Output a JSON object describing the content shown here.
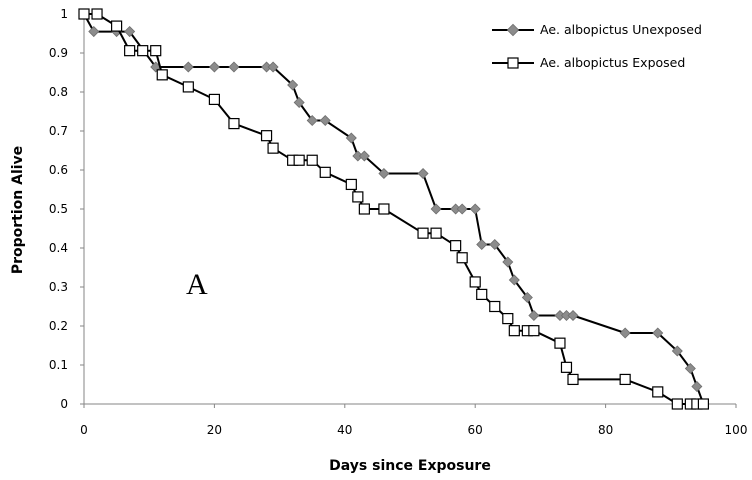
{
  "chart_data": {
    "type": "line",
    "xlabel": "Days since Exposure",
    "ylabel": "Proportion Alive",
    "xlim": [
      0,
      100
    ],
    "ylim": [
      0,
      1
    ],
    "x_ticks": [
      "0",
      "20",
      "40",
      "60",
      "80",
      "100"
    ],
    "y_ticks": [
      "0",
      "0.1",
      "0.2",
      "0.3",
      "0.4",
      "0.5",
      "0.6",
      "0.7",
      "0.8",
      "0.9",
      "1"
    ],
    "annotation": "A",
    "legend_position": "top-right",
    "series": [
      {
        "name": "Ae. albopictus Unexposed",
        "color": "#000000",
        "marker": "diamond",
        "marker_color": "#8c8c8c",
        "points": [
          [
            0,
            1
          ],
          [
            1.5,
            0.955
          ],
          [
            5,
            0.955
          ],
          [
            7,
            0.955
          ],
          [
            11,
            0.864
          ],
          [
            16,
            0.864
          ],
          [
            20,
            0.864
          ],
          [
            23,
            0.864
          ],
          [
            28,
            0.864
          ],
          [
            29,
            0.864
          ],
          [
            32,
            0.818
          ],
          [
            33,
            0.773
          ],
          [
            35,
            0.727
          ],
          [
            37,
            0.727
          ],
          [
            41,
            0.682
          ],
          [
            42,
            0.636
          ],
          [
            43,
            0.636
          ],
          [
            46,
            0.591
          ],
          [
            52,
            0.591
          ],
          [
            54,
            0.5
          ],
          [
            57,
            0.5
          ],
          [
            58,
            0.5
          ],
          [
            60,
            0.5
          ],
          [
            61,
            0.409
          ],
          [
            63,
            0.409
          ],
          [
            65,
            0.364
          ],
          [
            66,
            0.318
          ],
          [
            68,
            0.273
          ],
          [
            69,
            0.227
          ],
          [
            73,
            0.227
          ],
          [
            74,
            0.227
          ],
          [
            75,
            0.227
          ],
          [
            83,
            0.182
          ],
          [
            88,
            0.182
          ],
          [
            91,
            0.136
          ],
          [
            93,
            0.091
          ],
          [
            94,
            0.045
          ],
          [
            95,
            0
          ]
        ]
      },
      {
        "name": "Ae. albopictus Exposed",
        "color": "#000000",
        "marker": "square",
        "marker_color": "#ffffff",
        "points": [
          [
            0,
            1
          ],
          [
            2,
            1
          ],
          [
            5,
            0.969
          ],
          [
            7,
            0.906
          ],
          [
            9,
            0.906
          ],
          [
            11,
            0.906
          ],
          [
            12,
            0.844
          ],
          [
            16,
            0.813
          ],
          [
            20,
            0.781
          ],
          [
            23,
            0.719
          ],
          [
            28,
            0.688
          ],
          [
            29,
            0.656
          ],
          [
            32,
            0.625
          ],
          [
            33,
            0.625
          ],
          [
            35,
            0.625
          ],
          [
            37,
            0.594
          ],
          [
            41,
            0.563
          ],
          [
            42,
            0.531
          ],
          [
            43,
            0.5
          ],
          [
            46,
            0.5
          ],
          [
            52,
            0.438
          ],
          [
            54,
            0.438
          ],
          [
            57,
            0.406
          ],
          [
            58,
            0.375
          ],
          [
            60,
            0.313
          ],
          [
            61,
            0.281
          ],
          [
            63,
            0.25
          ],
          [
            65,
            0.219
          ],
          [
            66,
            0.188
          ],
          [
            68,
            0.188
          ],
          [
            69,
            0.188
          ],
          [
            73,
            0.156
          ],
          [
            74,
            0.094
          ],
          [
            75,
            0.063
          ],
          [
            83,
            0.063
          ],
          [
            88,
            0.031
          ],
          [
            91,
            0
          ],
          [
            93,
            0
          ],
          [
            94,
            0
          ],
          [
            95,
            0
          ]
        ]
      }
    ]
  }
}
